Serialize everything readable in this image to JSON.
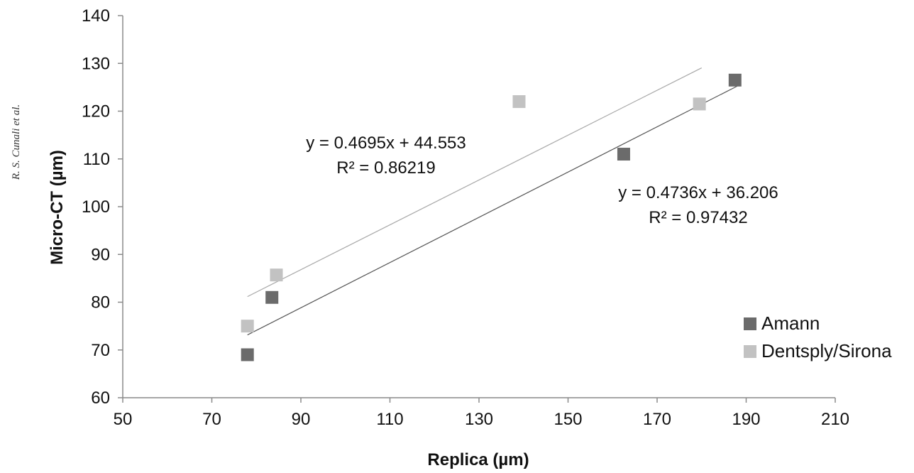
{
  "side_note": "R. S. Cunali et al.",
  "chart_data": {
    "type": "scatter",
    "xlabel": "Replica (µm)",
    "ylabel": "Micro-CT (µm)",
    "xlim": [
      50,
      210
    ],
    "ylim": [
      60,
      140
    ],
    "x_ticks": [
      50,
      70,
      90,
      110,
      130,
      150,
      170,
      190,
      210
    ],
    "y_ticks": [
      60,
      70,
      80,
      90,
      100,
      110,
      120,
      130,
      140
    ],
    "grid": false,
    "legend_position": "bottom-right",
    "series": [
      {
        "name": "Amann",
        "color": "#6b6b6b",
        "points": [
          {
            "x": 78,
            "y": 69
          },
          {
            "x": 83.5,
            "y": 81
          },
          {
            "x": 162.5,
            "y": 111
          },
          {
            "x": 187.5,
            "y": 126.5
          }
        ],
        "trendline": {
          "slope": 0.4736,
          "intercept": 36.206,
          "x_range": [
            78,
            188
          ],
          "color": "#555555"
        },
        "equation": "y = 0.4736x + 36.206",
        "r_squared": "R² = 0.97432"
      },
      {
        "name": "Dentsply/Sirona",
        "color": "#c2c2c2",
        "points": [
          {
            "x": 78,
            "y": 75
          },
          {
            "x": 84.5,
            "y": 85.7
          },
          {
            "x": 139,
            "y": 122
          },
          {
            "x": 179.5,
            "y": 121.5
          }
        ],
        "trendline": {
          "slope": 0.4695,
          "intercept": 44.553,
          "x_range": [
            78,
            180
          ],
          "color": "#a8a8a8"
        },
        "equation": "y = 0.4695x + 44.553",
        "r_squared": "R² = 0.86219"
      }
    ]
  }
}
